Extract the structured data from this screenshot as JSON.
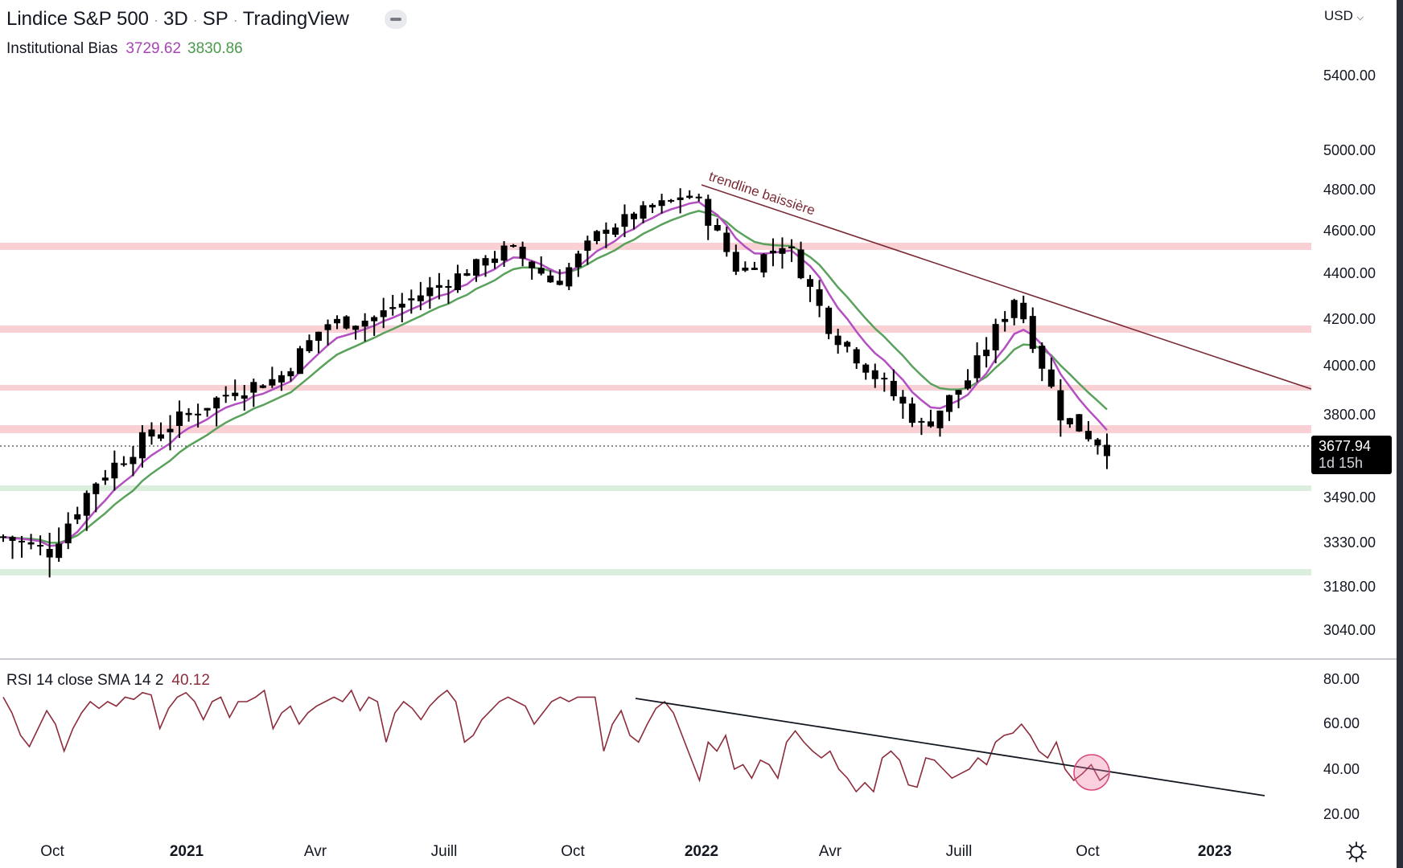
{
  "header": {
    "symbol": "Lindice S&P 500",
    "interval": "3D",
    "exchange": "SP",
    "source": "TradingView",
    "collapse_icon": "minus-icon"
  },
  "indicator_legend": {
    "name": "Institutional Bias",
    "value_1": "3729.62",
    "value_1_color": "#a845b5",
    "value_2": "3830.86",
    "value_2_color": "#4a9a4c"
  },
  "rsi_legend": {
    "name": "RSI 14 close SMA 14 2",
    "value": "40.12",
    "value_color": "#8b2d3c"
  },
  "price_axis": {
    "currency": "USD",
    "labels": [
      "5400.00",
      "5000.00",
      "4800.00",
      "4600.00",
      "4400.00",
      "4200.00",
      "4000.00",
      "3800.00",
      "3490.00",
      "3330.00",
      "3180.00",
      "3040.00"
    ],
    "current_price": "3677.94",
    "countdown": "1d 15h"
  },
  "rsi_axis": {
    "labels": [
      "80.00",
      "60.00",
      "40.00",
      "20.00"
    ]
  },
  "time_axis": {
    "labels": [
      "Oct",
      "2021",
      "Avr",
      "Juill",
      "Oct",
      "2022",
      "Avr",
      "Juill",
      "Oct",
      "2023"
    ],
    "settings_icon": "gear-icon"
  },
  "annotations": {
    "trendline_label": "trendline baissière",
    "trendline_color": "#7a2a35",
    "rsi_trendline_color": "#131722",
    "highlight_circle_color": "#e0507a"
  },
  "chart_data": [
    {
      "type": "candlestick",
      "title": "Lindice S&P 500 · 3D · SP · TradingView",
      "xlabel": "",
      "ylabel": "USD",
      "x_ticks": [
        "Oct",
        "2021",
        "Avr",
        "Juill",
        "Oct",
        "2022",
        "Avr",
        "Juill",
        "Oct",
        "2023"
      ],
      "y_ticks": [
        5400,
        5000,
        4800,
        4600,
        4400,
        4200,
        4000,
        3800,
        3490,
        3330,
        3180,
        3040
      ],
      "ylim": [
        2950,
        5600
      ],
      "last_price": 3677.94,
      "series": [
        {
          "name": "Institutional Bias fast (purple)",
          "last": 3729.62
        },
        {
          "name": "Institutional Bias slow (green)",
          "last": 3830.86
        }
      ],
      "approx_close_path": [
        {
          "date": "2020-09",
          "close": 3350
        },
        {
          "date": "2020-10",
          "close": 3300
        },
        {
          "date": "2020-11",
          "close": 3550
        },
        {
          "date": "2020-12",
          "close": 3700
        },
        {
          "date": "2021-01",
          "close": 3800
        },
        {
          "date": "2021-02",
          "close": 3900
        },
        {
          "date": "2021-03",
          "close": 3950
        },
        {
          "date": "2021-04",
          "close": 4180
        },
        {
          "date": "2021-05",
          "close": 4200
        },
        {
          "date": "2021-06",
          "close": 4300
        },
        {
          "date": "2021-07",
          "close": 4400
        },
        {
          "date": "2021-08",
          "close": 4520
        },
        {
          "date": "2021-09",
          "close": 4350
        },
        {
          "date": "2021-10",
          "close": 4600
        },
        {
          "date": "2021-11",
          "close": 4700
        },
        {
          "date": "2022-01",
          "close": 4780
        },
        {
          "date": "2022-02",
          "close": 4400
        },
        {
          "date": "2022-03",
          "close": 4550
        },
        {
          "date": "2022-04",
          "close": 4150
        },
        {
          "date": "2022-05",
          "close": 3950
        },
        {
          "date": "2022-06",
          "close": 3750
        },
        {
          "date": "2022-07",
          "close": 3950
        },
        {
          "date": "2022-08",
          "close": 4300
        },
        {
          "date": "2022-09",
          "close": 3800
        },
        {
          "date": "2022-10",
          "close": 3678
        }
      ],
      "horizontal_zones": [
        {
          "price": 4540,
          "color": "red"
        },
        {
          "price": 4165,
          "color": "red"
        },
        {
          "price": 3920,
          "color": "red"
        },
        {
          "price": 3740,
          "color": "red"
        },
        {
          "price": 3505,
          "color": "green"
        },
        {
          "price": 3220,
          "color": "green"
        }
      ],
      "annotations": [
        {
          "text": "trendline baissière",
          "type": "downtrend line from Jan 2022 high through Aug 2022 high"
        }
      ]
    },
    {
      "type": "line",
      "title": "RSI 14 close SMA 14 2",
      "ylim": [
        15,
        85
      ],
      "y_ticks": [
        80,
        60,
        40,
        20
      ],
      "last_value": 40.12,
      "approx_values": [
        72,
        65,
        55,
        50,
        58,
        66,
        60,
        48,
        58,
        65,
        70,
        67,
        70,
        68,
        72,
        71,
        74,
        73,
        58,
        67,
        72,
        74,
        70,
        62,
        70,
        72,
        63,
        70,
        70,
        72,
        75,
        58,
        65,
        68,
        60,
        65,
        68,
        70,
        72,
        70,
        75,
        66,
        72,
        70,
        52,
        65,
        70,
        67,
        62,
        68,
        72,
        75,
        70,
        52,
        55,
        62,
        66,
        70,
        72,
        70,
        68,
        60,
        65,
        70,
        72,
        70,
        72,
        72,
        72,
        48,
        60,
        66,
        55,
        52,
        60,
        67,
        70,
        65,
        55,
        45,
        35,
        52,
        48,
        55,
        40,
        42,
        36,
        44,
        42,
        36,
        52,
        57,
        52,
        48,
        45,
        48,
        40,
        36,
        30,
        34,
        30,
        45,
        48,
        44,
        33,
        32,
        45,
        44,
        40,
        36,
        38,
        40,
        45,
        42,
        52,
        55,
        56,
        60,
        55,
        48,
        45,
        52,
        40,
        35,
        38,
        42,
        35,
        38
      ]
    }
  ]
}
